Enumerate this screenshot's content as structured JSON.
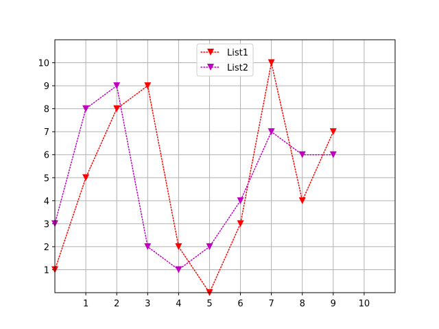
{
  "chart_data": {
    "type": "line",
    "title": "",
    "xlabel": "",
    "ylabel": "",
    "xlim": [
      0,
      11
    ],
    "ylim": [
      0,
      11
    ],
    "xticks": [
      1,
      2,
      3,
      4,
      5,
      6,
      7,
      8,
      9,
      10
    ],
    "yticks": [
      1,
      2,
      3,
      4,
      5,
      6,
      7,
      8,
      9,
      10
    ],
    "grid": true,
    "legend_position": "upper center",
    "series": [
      {
        "name": "List1",
        "color": "#ff0000",
        "line_style": "dotted",
        "marker": "triangle-down",
        "x": [
          0,
          1,
          2,
          3,
          4,
          5,
          6,
          7,
          8,
          9
        ],
        "y": [
          1,
          5,
          8,
          9,
          2,
          0,
          3,
          10,
          4,
          7
        ]
      },
      {
        "name": "List2",
        "color": "#bf00bf",
        "line_style": "dotted",
        "marker": "triangle-down",
        "x": [
          0,
          1,
          2,
          3,
          4,
          5,
          6,
          7,
          8,
          9
        ],
        "y": [
          3,
          8,
          9,
          2,
          1,
          2,
          4,
          7,
          6,
          6
        ]
      }
    ]
  }
}
